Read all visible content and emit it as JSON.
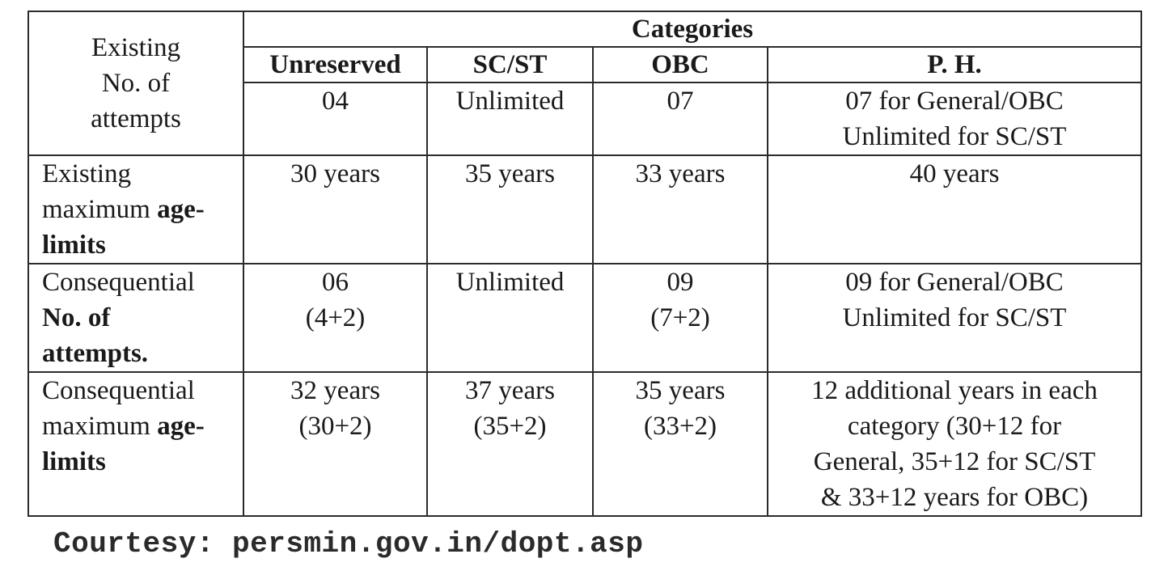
{
  "table": {
    "group_header": "Categories",
    "columns": [
      "Unreserved",
      "SC/ST",
      "OBC",
      "P. H."
    ],
    "rows": [
      {
        "label": [
          "Existing",
          "No. of",
          "attempts"
        ],
        "cells": [
          [
            "04"
          ],
          [
            "Unlimited"
          ],
          [
            "07"
          ],
          [
            "07 for General/OBC",
            "Unlimited for SC/ST"
          ]
        ]
      },
      {
        "label": [
          "Existing",
          "maximum ",
          "age-",
          "limits"
        ],
        "cells": [
          [
            "30 years"
          ],
          [
            "35 years"
          ],
          [
            "33 years"
          ],
          [
            "40 years"
          ]
        ]
      },
      {
        "label": [
          "Consequential",
          "No. of",
          "attempts."
        ],
        "cells": [
          [
            "06",
            "(4+2)"
          ],
          [
            "Unlimited"
          ],
          [
            "09",
            "(7+2)"
          ],
          [
            "09 for General/OBC",
            "Unlimited for SC/ST"
          ]
        ]
      },
      {
        "label": [
          "Consequential",
          "maximum ",
          "age-",
          "limits"
        ],
        "cells": [
          [
            "32 years",
            "(30+2)"
          ],
          [
            "37 years",
            "(35+2)"
          ],
          [
            "35 years",
            "(33+2)"
          ],
          [
            "12 additional years in each",
            "category (30+12 for",
            "General, 35+12 for SC/ST",
            "& 33+12 years for OBC)"
          ]
        ]
      }
    ]
  },
  "courtesy": "Courtesy: persmin.gov.in/dopt.asp"
}
